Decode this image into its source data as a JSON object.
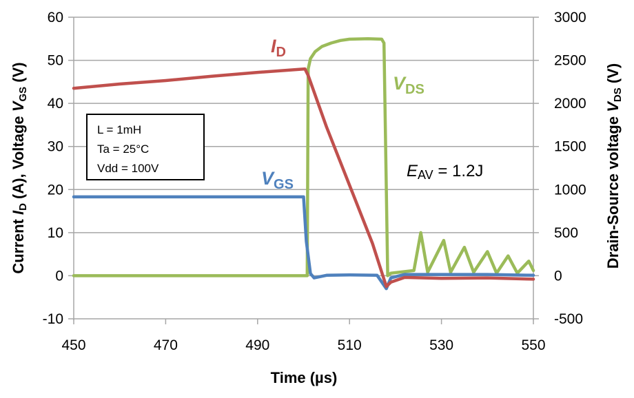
{
  "chart_data": {
    "type": "line",
    "title": "",
    "xlabel": "Time (µs)",
    "ylabel_left": {
      "prefix": "Current ",
      "i": "I",
      "i_sub": "D",
      "mid": " (A), Voltage ",
      "v": "V",
      "v_sub": "GS",
      "suffix": " (V)"
    },
    "ylabel_right": {
      "prefix": "Drain-Source voltage ",
      "v": "V",
      "v_sub": "DS",
      "suffix": " (V)"
    },
    "xlim": [
      450,
      550
    ],
    "ylim_left": [
      -10,
      60
    ],
    "ylim_right": [
      -500,
      3000
    ],
    "x_ticks": [
      450,
      470,
      490,
      510,
      530,
      550
    ],
    "y_ticks_left": [
      -10,
      0,
      10,
      20,
      30,
      40,
      50,
      60
    ],
    "y_ticks_right": [
      -500,
      0,
      500,
      1000,
      1500,
      2000,
      2500,
      3000
    ],
    "grid": "horizontal",
    "series": [
      {
        "name": "ID",
        "label_main": "I",
        "label_sub": "D",
        "axis": "left",
        "color": "#C0504D",
        "points": [
          [
            450,
            43.5
          ],
          [
            460,
            44.5
          ],
          [
            470,
            45.3
          ],
          [
            480,
            46.3
          ],
          [
            490,
            47.2
          ],
          [
            500.3,
            48.0
          ],
          [
            501,
            46.5
          ],
          [
            505,
            34.5
          ],
          [
            510,
            21.0
          ],
          [
            515,
            7.5
          ],
          [
            518,
            -2.5
          ],
          [
            519,
            -1.5
          ],
          [
            522,
            -0.4
          ],
          [
            530,
            -0.6
          ],
          [
            540,
            -0.5
          ],
          [
            550,
            -0.8
          ]
        ]
      },
      {
        "name": "VGS",
        "label_main": "V",
        "label_sub": "GS",
        "axis": "left",
        "color": "#4F81BD",
        "points": [
          [
            450,
            18.3
          ],
          [
            470,
            18.3
          ],
          [
            490,
            18.3
          ],
          [
            500,
            18.3
          ],
          [
            500.6,
            8.0
          ],
          [
            501.5,
            0.5
          ],
          [
            502.3,
            -0.5
          ],
          [
            505,
            0.1
          ],
          [
            510,
            0.2
          ],
          [
            516,
            0.1
          ],
          [
            518,
            -3.0
          ],
          [
            519,
            -0.5
          ],
          [
            522,
            0.3
          ],
          [
            530,
            0.3
          ],
          [
            540,
            0.3
          ],
          [
            550,
            0.1
          ]
        ]
      },
      {
        "name": "VDS",
        "label_main": "V",
        "label_sub": "DS",
        "axis": "right",
        "color": "#9BBB59",
        "points": [
          [
            450,
            0
          ],
          [
            460,
            0
          ],
          [
            480,
            0
          ],
          [
            500.8,
            0
          ],
          [
            501.0,
            2400
          ],
          [
            501.5,
            2520
          ],
          [
            502.5,
            2600
          ],
          [
            504,
            2660
          ],
          [
            506,
            2700
          ],
          [
            508,
            2730
          ],
          [
            510,
            2745
          ],
          [
            514,
            2750
          ],
          [
            517,
            2745
          ],
          [
            517.5,
            2700
          ],
          [
            518.3,
            0
          ],
          [
            519,
            30
          ],
          [
            524,
            60
          ],
          [
            525.5,
            500
          ],
          [
            527,
            40
          ],
          [
            530.5,
            410
          ],
          [
            532,
            40
          ],
          [
            535,
            330
          ],
          [
            537,
            40
          ],
          [
            540,
            280
          ],
          [
            542,
            30
          ],
          [
            544.5,
            230
          ],
          [
            546.5,
            30
          ],
          [
            549,
            170
          ],
          [
            550,
            60
          ]
        ]
      }
    ],
    "annotations": {
      "param_box": [
        "L = 1mH",
        "Ta = 25°C",
        "Vdd = 100V"
      ],
      "energy": {
        "main": "E",
        "sub": "AV",
        "rest": " = 1.2J"
      }
    }
  }
}
